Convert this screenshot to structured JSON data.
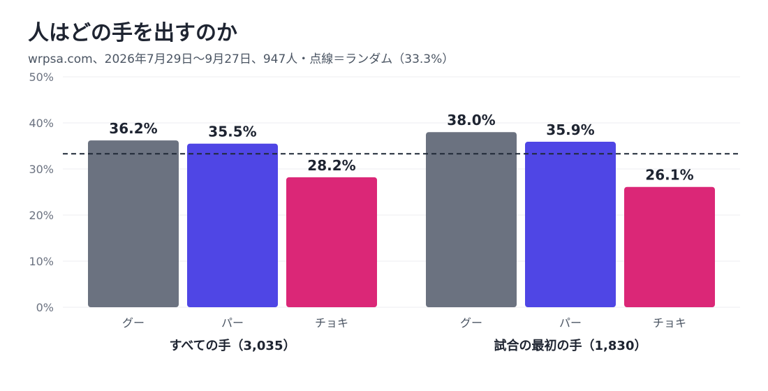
{
  "chart_data": {
    "type": "bar",
    "title": "人はどの手を出すのか",
    "subtitle": "wrpsa.com、2026年7月29日〜9月27日、947人・点線＝ランダム（33.3%）",
    "ylim": [
      0,
      50
    ],
    "yticks": [
      0,
      10,
      20,
      30,
      40,
      50
    ],
    "ytick_labels": [
      "0%",
      "10%",
      "20%",
      "30%",
      "40%",
      "50%"
    ],
    "reference_line": 33.3,
    "categories": [
      "グー",
      "パー",
      "チョキ"
    ],
    "colors": [
      "#6b7280",
      "#4f46e5",
      "#db2777"
    ],
    "groups": [
      {
        "label": "すべての手（3,035）",
        "values": [
          36.2,
          35.5,
          28.2
        ],
        "value_labels": [
          "36.2%",
          "35.5%",
          "28.2%"
        ]
      },
      {
        "label": "試合の最初の手（1,830）",
        "values": [
          38.0,
          35.9,
          26.1
        ],
        "value_labels": [
          "38.0%",
          "35.9%",
          "26.1%"
        ]
      }
    ]
  }
}
